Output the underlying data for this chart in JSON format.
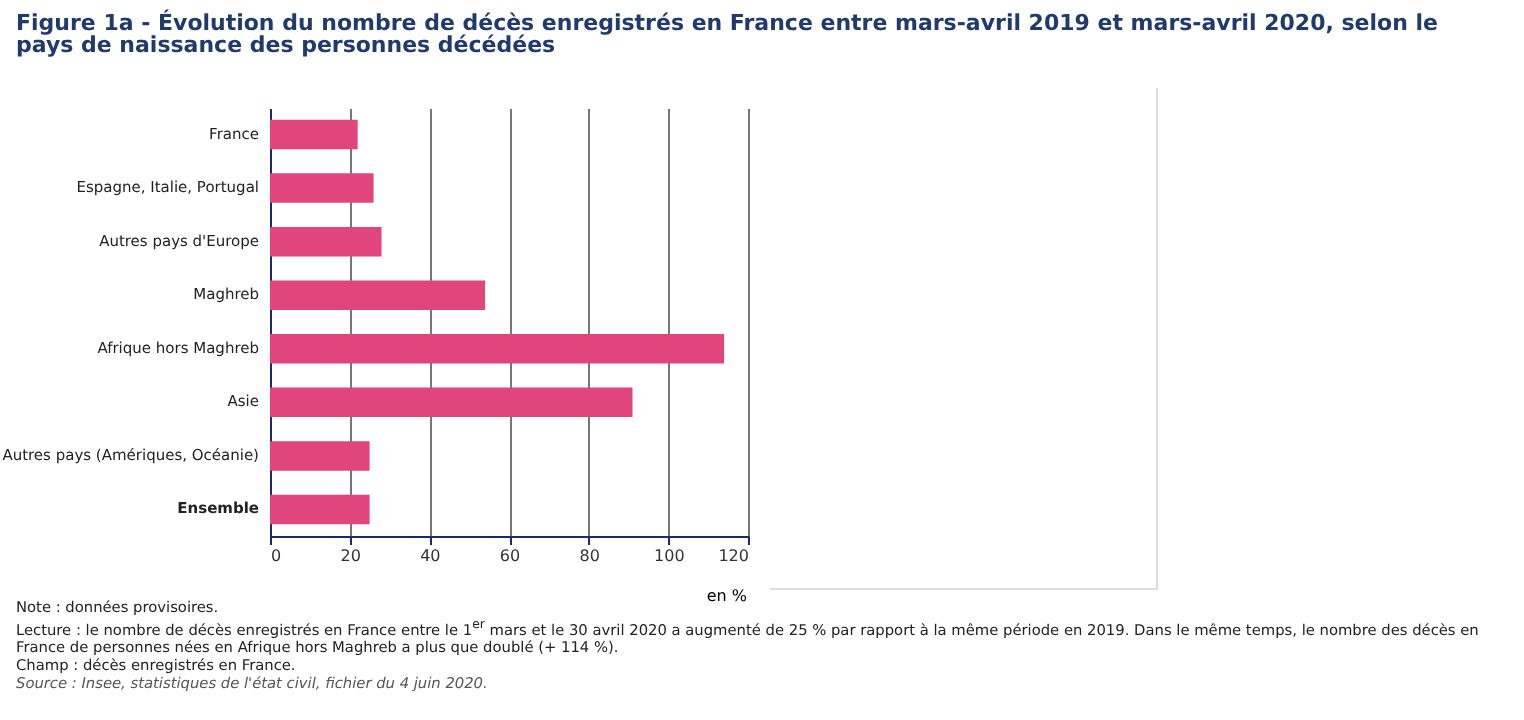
{
  "chart_data": {
    "type": "bar",
    "orientation": "horizontal",
    "title": "Figure 1a - Évolution du nombre de décès enregistrés en France entre mars-avril 2019 et mars-avril 2020, selon le pays de naissance des personnes décédées",
    "categories": [
      "France",
      "Espagne, Italie, Portugal",
      "Autres pays d'Europe",
      "Maghreb",
      "Afrique hors Maghreb",
      "Asie",
      "Autres pays (Amériques, Océanie)",
      "Ensemble"
    ],
    "values": [
      22,
      26,
      28,
      54,
      114,
      91,
      25,
      25
    ],
    "color": "#e0457b",
    "xlabel": "en %",
    "xlim": [
      0,
      120
    ],
    "xticks": [
      0,
      20,
      40,
      60,
      80,
      100,
      120
    ],
    "grid": "x",
    "annotations": [
      "Note : données provisoires.",
      "Lecture : le nombre de décès enregistrés en France entre le 1$^{er}$ mars et le 30 avril 2020 a augmenté de 25 % par rapport à la même période en 2019. Dans le même temps, le nombre des décès en France de personnes nées en Afrique hors Maghreb a plus que doublé (+ 114 %).",
      "Champ : décès enregistrés en France.",
      "Source : Insee, statistiques de l'état civil, fichier du 4 juin 2020."
    ]
  }
}
